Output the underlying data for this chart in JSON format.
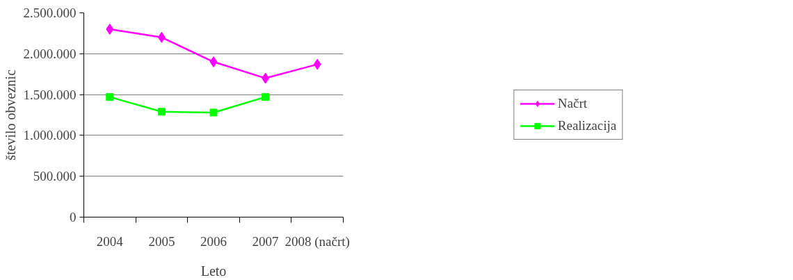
{
  "chart_data": {
    "type": "line",
    "xlabel": "Leto",
    "ylabel": "število obveznic",
    "categories": [
      "2004",
      "2005",
      "2006",
      "2007",
      "2008 (načrt)"
    ],
    "series": [
      {
        "name": "Načrt",
        "color": "#ff00ff",
        "marker": "diamond",
        "values": [
          2300000,
          2200000,
          1900000,
          1700000,
          1870000
        ]
      },
      {
        "name": "Realizacija",
        "color": "#00ff00",
        "marker": "square",
        "values": [
          1470000,
          1290000,
          1280000,
          1470000,
          null
        ]
      }
    ],
    "ylim": [
      0,
      2500000
    ],
    "yticks": [
      0,
      {
        "value": 500000,
        "label": "500.000"
      },
      {
        "value": 1000000,
        "label": "1.000.000"
      },
      {
        "value": 1500000,
        "label": "1.500.000"
      },
      {
        "value": 2000000,
        "label": "2.000.000"
      },
      {
        "value": 2500000,
        "label": "2.500.000"
      }
    ],
    "grid": "y",
    "legend": "right",
    "line_style": "solid"
  }
}
